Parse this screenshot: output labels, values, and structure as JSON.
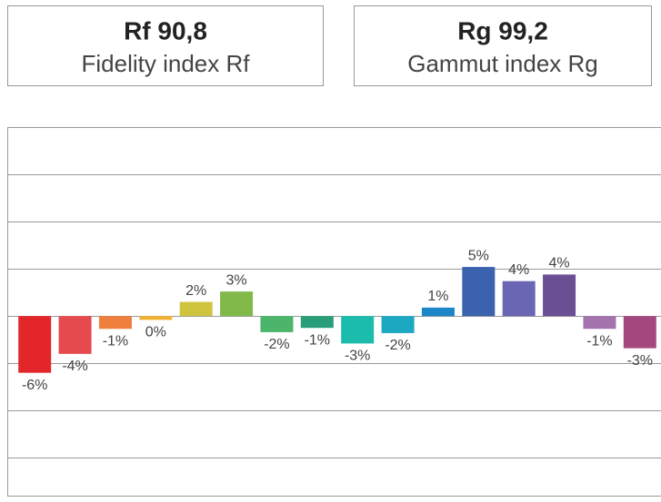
{
  "cards": [
    {
      "title": "Rf 90,8",
      "subtitle": "Fidelity index Rf"
    },
    {
      "title": "Rg 99,2",
      "subtitle": "Gammut index Rg"
    }
  ],
  "chart_data": {
    "type": "bar",
    "categories": [
      null,
      null,
      null,
      null,
      null,
      null,
      null,
      null,
      null,
      null,
      null,
      null,
      null,
      null,
      null,
      null
    ],
    "values": [
      -6.0,
      -4.0,
      -1.35,
      -0.4,
      1.5,
      2.6,
      -1.7,
      -1.25,
      -2.9,
      -1.8,
      0.9,
      5.2,
      3.7,
      4.4,
      -1.35,
      -3.4
    ],
    "value_labels": [
      "-6%",
      "-4%",
      "-1%",
      "0%",
      "2%",
      "3%",
      "-2%",
      "-1%",
      "-3%",
      "-2%",
      "1%",
      "5%",
      "4%",
      "4%",
      "-1%",
      "-3%"
    ],
    "colors": [
      "#e3262a",
      "#e54a4f",
      "#ee7f3c",
      "#f2b131",
      "#cfc43e",
      "#80b94a",
      "#4bb66b",
      "#2a9e79",
      "#1cbcac",
      "#1da8c2",
      "#1d86c8",
      "#3a62ae",
      "#6b66b3",
      "#6b4f94",
      "#a373ad",
      "#a5477f"
    ],
    "ylim": [
      -19,
      20
    ],
    "yticks": [
      -15,
      -10,
      -5,
      0,
      5,
      10,
      15
    ],
    "grid": true
  }
}
